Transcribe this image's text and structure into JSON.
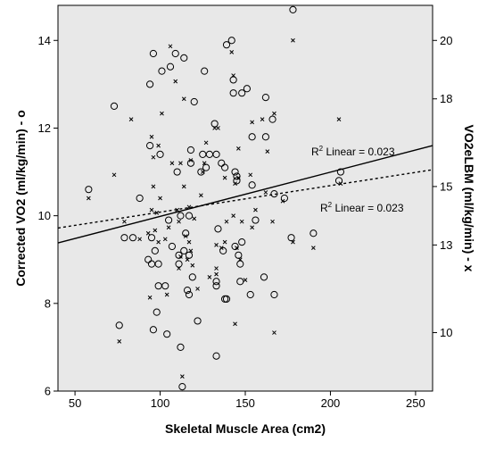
{
  "chart_data": {
    "type": "scatter",
    "xlabel": "Skeletal Muscle Area (cm2)",
    "ylabel": "Corrected VO2 (ml/kg/min) - o",
    "y2label": "VO2eLBM (ml/kg/min) - x",
    "xlim": [
      40,
      260
    ],
    "ylim": [
      6,
      14.8
    ],
    "y2lim": [
      8,
      21.2
    ],
    "xticks": [
      50,
      100,
      150,
      200,
      250
    ],
    "yticks": [
      6,
      8,
      10,
      12,
      14
    ],
    "y2ticks": [
      10,
      13,
      15,
      18,
      20
    ],
    "background": "#e8e8e8",
    "fit_labels": [
      "R",
      "2",
      " Linear = 0.023"
    ],
    "series": [
      {
        "marker": "o",
        "axis": "left",
        "points": [
          [
            58,
            10.6
          ],
          [
            73,
            12.5
          ],
          [
            76,
            7.5
          ],
          [
            79,
            9.5
          ],
          [
            84,
            9.5
          ],
          [
            88,
            10.4
          ],
          [
            93,
            9.0
          ],
          [
            94,
            13.0
          ],
          [
            94,
            11.6
          ],
          [
            95,
            9.5
          ],
          [
            95,
            8.9
          ],
          [
            96,
            7.4
          ],
          [
            96,
            13.7
          ],
          [
            97,
            9.2
          ],
          [
            98,
            7.8
          ],
          [
            99,
            8.4
          ],
          [
            99,
            8.9
          ],
          [
            100,
            11.4
          ],
          [
            101,
            13.3
          ],
          [
            103,
            8.4
          ],
          [
            104,
            7.3
          ],
          [
            105,
            9.9
          ],
          [
            106,
            13.4
          ],
          [
            107,
            9.3
          ],
          [
            109,
            13.7
          ],
          [
            110,
            11.0
          ],
          [
            111,
            9.1
          ],
          [
            111,
            8.9
          ],
          [
            112,
            10.0
          ],
          [
            112,
            7.0
          ],
          [
            113,
            6.1
          ],
          [
            114,
            13.6
          ],
          [
            114,
            9.2
          ],
          [
            115,
            9.6
          ],
          [
            116,
            8.3
          ],
          [
            117,
            8.2
          ],
          [
            117,
            9.1
          ],
          [
            117,
            10.0
          ],
          [
            118,
            11.5
          ],
          [
            118,
            11.2
          ],
          [
            119,
            8.6
          ],
          [
            120,
            12.6
          ],
          [
            122,
            7.6
          ],
          [
            124,
            11.0
          ],
          [
            125,
            11.4
          ],
          [
            126,
            13.3
          ],
          [
            127,
            11.1
          ],
          [
            129,
            11.4
          ],
          [
            132,
            12.1
          ],
          [
            133,
            8.5
          ],
          [
            133,
            8.4
          ],
          [
            133,
            6.8
          ],
          [
            133,
            11.4
          ],
          [
            134,
            9.7
          ],
          [
            136,
            11.2
          ],
          [
            137,
            9.2
          ],
          [
            138,
            8.1
          ],
          [
            138,
            11.1
          ],
          [
            139,
            8.1
          ],
          [
            139,
            13.9
          ],
          [
            142,
            14.0
          ],
          [
            143,
            12.8
          ],
          [
            143,
            13.1
          ],
          [
            144,
            11.0
          ],
          [
            144,
            9.3
          ],
          [
            145,
            10.8
          ],
          [
            145,
            10.9
          ],
          [
            146,
            9.1
          ],
          [
            147,
            8.5
          ],
          [
            147,
            8.9
          ],
          [
            148,
            12.8
          ],
          [
            148,
            9.4
          ],
          [
            151,
            12.9
          ],
          [
            153,
            8.2
          ],
          [
            154,
            11.8
          ],
          [
            154,
            10.7
          ],
          [
            156,
            9.9
          ],
          [
            161,
            8.6
          ],
          [
            162,
            12.7
          ],
          [
            162,
            11.8
          ],
          [
            166,
            12.2
          ],
          [
            167,
            10.5
          ],
          [
            167,
            8.2
          ],
          [
            173,
            10.4
          ],
          [
            177,
            9.5
          ],
          [
            178,
            14.7
          ],
          [
            190,
            9.6
          ],
          [
            205,
            10.8
          ],
          [
            206,
            11.0
          ]
        ]
      },
      {
        "marker": "x",
        "axis": "right",
        "points": [
          [
            58,
            14.6
          ],
          [
            73,
            15.4
          ],
          [
            76,
            9.7
          ],
          [
            79,
            13.8
          ],
          [
            83,
            17.3
          ],
          [
            88,
            13.2
          ],
          [
            93,
            13.4
          ],
          [
            94,
            11.2
          ],
          [
            95,
            16.7
          ],
          [
            95,
            14.2
          ],
          [
            96,
            15.0
          ],
          [
            96,
            16.0
          ],
          [
            97,
            13.5
          ],
          [
            98,
            14.1
          ],
          [
            99,
            16.4
          ],
          [
            99,
            13.1
          ],
          [
            100,
            14.6
          ],
          [
            101,
            17.5
          ],
          [
            103,
            13.2
          ],
          [
            104,
            11.3
          ],
          [
            105,
            13.6
          ],
          [
            106,
            19.8
          ],
          [
            107,
            15.8
          ],
          [
            109,
            18.6
          ],
          [
            110,
            14.2
          ],
          [
            111,
            13.8
          ],
          [
            111,
            12.2
          ],
          [
            112,
            12.6
          ],
          [
            112,
            15.8
          ],
          [
            113,
            8.5
          ],
          [
            114,
            18.0
          ],
          [
            114,
            15.0
          ],
          [
            115,
            13.3
          ],
          [
            116,
            12.5
          ],
          [
            117,
            13.1
          ],
          [
            117,
            14.3
          ],
          [
            118,
            15.9
          ],
          [
            118,
            12.8
          ],
          [
            119,
            12.3
          ],
          [
            120,
            13.9
          ],
          [
            122,
            11.5
          ],
          [
            124,
            14.7
          ],
          [
            125,
            15.5
          ],
          [
            126,
            15.8
          ],
          [
            127,
            16.5
          ],
          [
            129,
            11.9
          ],
          [
            132,
            17.0
          ],
          [
            133,
            12.2
          ],
          [
            133,
            12.0
          ],
          [
            133,
            13.0
          ],
          [
            134,
            17.0
          ],
          [
            136,
            12.9
          ],
          [
            138,
            15.3
          ],
          [
            138,
            13.1
          ],
          [
            139,
            13.8
          ],
          [
            142,
            19.6
          ],
          [
            143,
            18.8
          ],
          [
            143,
            14.0
          ],
          [
            144,
            15.1
          ],
          [
            144,
            10.3
          ],
          [
            145,
            12.9
          ],
          [
            146,
            16.3
          ],
          [
            146,
            15.3
          ],
          [
            147,
            12.5
          ],
          [
            148,
            13.8
          ],
          [
            150,
            11.8
          ],
          [
            153,
            15.4
          ],
          [
            154,
            17.2
          ],
          [
            154,
            13.6
          ],
          [
            156,
            14.2
          ],
          [
            160,
            17.3
          ],
          [
            162,
            14.8
          ],
          [
            163,
            16.2
          ],
          [
            166,
            13.8
          ],
          [
            167,
            17.5
          ],
          [
            167,
            10.0
          ],
          [
            172,
            14.5
          ],
          [
            178,
            13.1
          ],
          [
            178,
            20.0
          ],
          [
            190,
            12.9
          ],
          [
            205,
            17.3
          ],
          [
            206,
            15.1
          ]
        ]
      }
    ],
    "fit_lines": [
      {
        "axis": "left",
        "style": "solid",
        "points": [
          [
            40,
            9.38
          ],
          [
            260,
            11.6
          ]
        ]
      },
      {
        "axis": "left",
        "style": "dashed",
        "points": [
          [
            40,
            9.72
          ],
          [
            260,
            11.05
          ]
        ]
      }
    ]
  }
}
